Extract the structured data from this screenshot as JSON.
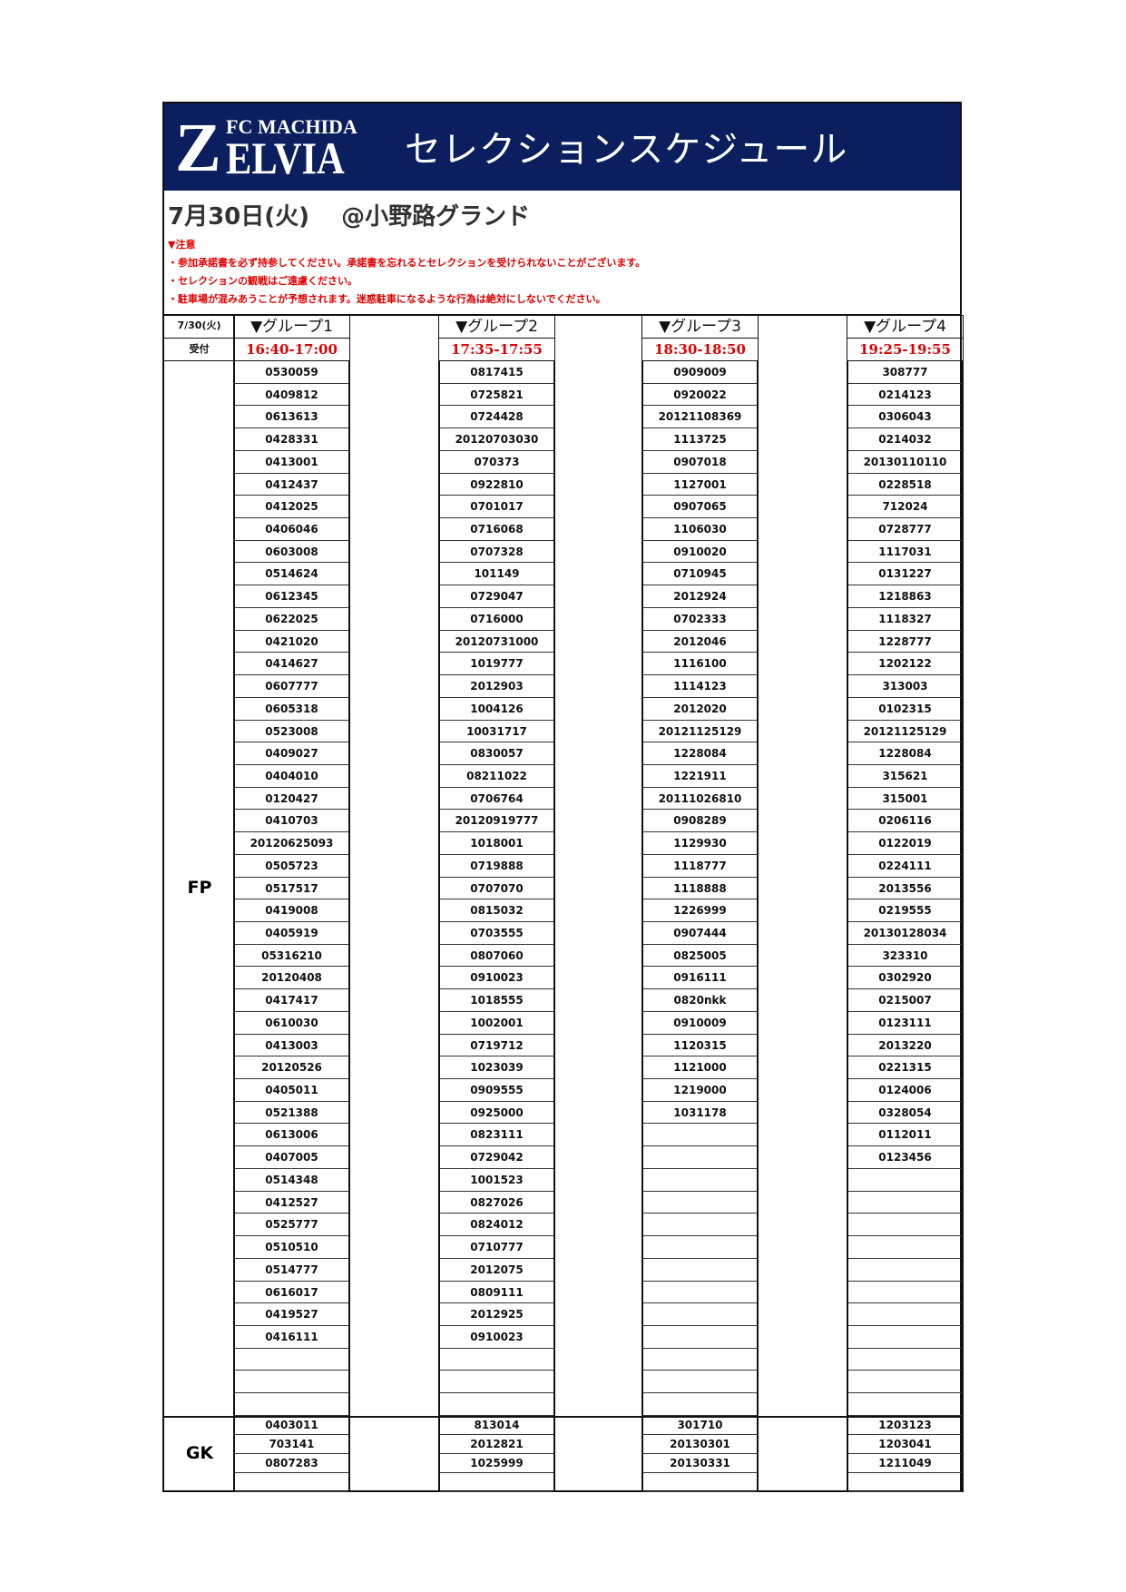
{
  "banner": {
    "logo_text": "FC MACHIDA ZELVIA",
    "title": "セレクションスケジュール",
    "color": "#0b1f5e"
  },
  "date_line": "7月30日(火)　 @小野路グランド",
  "notes": {
    "heading": "▼注意",
    "items": [
      "・参加承諾書を必ず持参してください。承諾書を忘れるとセレクションを受けられないことがございます。",
      "・セレクションの観戦はご遠慮ください。",
      "・駐車場が混みあうことが予想されます。迷惑駐車になるような行為は絶対にしないでください。"
    ],
    "color": "#e00000"
  },
  "table": {
    "date_label": "7/30(火)",
    "reception_label": "受付",
    "fp_label": "FP",
    "gk_label": "GK",
    "fp_rows": 47,
    "gk_rows": 4,
    "groups": [
      {
        "name": "▼グループ1",
        "time": "16:40-17:00",
        "fp": [
          "0530059",
          "0409812",
          "0613613",
          "0428331",
          "0413001",
          "0412437",
          "0412025",
          "0406046",
          "0603008",
          "0514624",
          "0612345",
          "0622025",
          "0421020",
          "0414627",
          "0607777",
          "0605318",
          "0523008",
          "0409027",
          "0404010",
          "0120427",
          "0410703",
          "20120625093",
          "0505723",
          "0517517",
          "0419008",
          "0405919",
          "05316210",
          "20120408",
          "0417417",
          "0610030",
          "0413003",
          "20120526",
          "0405011",
          "0521388",
          "0613006",
          "0407005",
          "0514348",
          "0412527",
          "0525777",
          "0510510",
          "0514777",
          "0616017",
          "0419527",
          "0416111"
        ],
        "gk": [
          "0403011",
          "703141",
          "0807283"
        ]
      },
      {
        "name": "▼グループ2",
        "time": "17:35-17:55",
        "fp": [
          "0817415",
          "0725821",
          "0724428",
          "20120703030",
          "070373",
          "0922810",
          "0701017",
          "0716068",
          "0707328",
          "101149",
          "0729047",
          "0716000",
          "20120731000",
          "1019777",
          "2012903",
          "1004126",
          "10031717",
          "0830057",
          "08211022",
          "0706764",
          "20120919777",
          "1018001",
          "0719888",
          "0707070",
          "0815032",
          "0703555",
          "0807060",
          "0910023",
          "1018555",
          "1002001",
          "0719712",
          "1023039",
          "0909555",
          "0925000",
          "0823111",
          "0729042",
          "1001523",
          "0827026",
          "0824012",
          "0710777",
          "2012075",
          "0809111",
          "2012925",
          "0910023"
        ],
        "gk": [
          "813014",
          "2012821",
          "1025999"
        ]
      },
      {
        "name": "▼グループ3",
        "time": "18:30-18:50",
        "fp": [
          "0909009",
          "0920022",
          "20121108369",
          "1113725",
          "0907018",
          "1127001",
          "0907065",
          "1106030",
          "0910020",
          "0710945",
          "2012924",
          "0702333",
          "2012046",
          "1116100",
          "1114123",
          "2012020",
          "20121125129",
          "1228084",
          "1221911",
          "20111026810",
          "0908289",
          "1129930",
          "1118777",
          "1118888",
          "1226999",
          "0907444",
          "0825005",
          "0916111",
          "0820nkk",
          "0910009",
          "1120315",
          "1121000",
          "1219000",
          "1031178"
        ],
        "gk": [
          "301710",
          "20130301",
          "20130331"
        ]
      },
      {
        "name": "▼グループ4",
        "time": "19:25-19:55",
        "fp": [
          "308777",
          "0214123",
          "0306043",
          "0214032",
          "20130110110",
          "0228518",
          "712024",
          "0728777",
          "1117031",
          "0131227",
          "1218863",
          "1118327",
          "1228777",
          "1202122",
          "313003",
          "0102315",
          "20121125129",
          "1228084",
          "315621",
          "315001",
          "0206116",
          "0122019",
          "0224111",
          "2013556",
          "0219555",
          "20130128034",
          "323310",
          "0302920",
          "0215007",
          "0123111",
          "2013220",
          "0221315",
          "0124006",
          "0328054",
          "0112011",
          "0123456"
        ],
        "gk": [
          "1203123",
          "1203041",
          "1211049"
        ]
      }
    ]
  }
}
